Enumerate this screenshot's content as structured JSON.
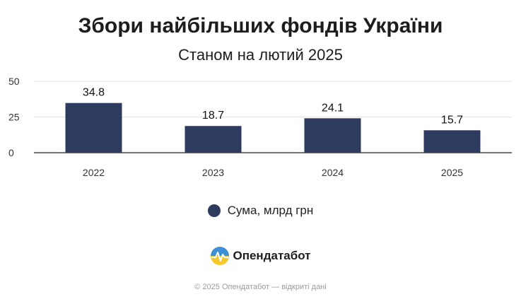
{
  "chart_data": {
    "type": "bar",
    "title": "Збори найбільших фондів України",
    "subtitle": "Станом на лютий 2025",
    "categories": [
      "2022",
      "2023",
      "2024",
      "2025"
    ],
    "series": [
      {
        "name": "Сума, млрд грн",
        "values": [
          34.8,
          18.7,
          24.1,
          15.7
        ]
      }
    ],
    "data_labels": [
      "34.8",
      "18.7",
      "24.1",
      "15.7"
    ],
    "yticks": [
      "0",
      "25",
      "50"
    ],
    "ylim": [
      0,
      50
    ],
    "grid": true,
    "legend": "bottom-center",
    "bar_color": "#2d3b5e"
  },
  "brand": {
    "name": "Опендатабот",
    "logo_icon": "opendatabot-logo-icon"
  },
  "footer": {
    "text": "© 2025 Опендатабот — відкриті дані"
  }
}
